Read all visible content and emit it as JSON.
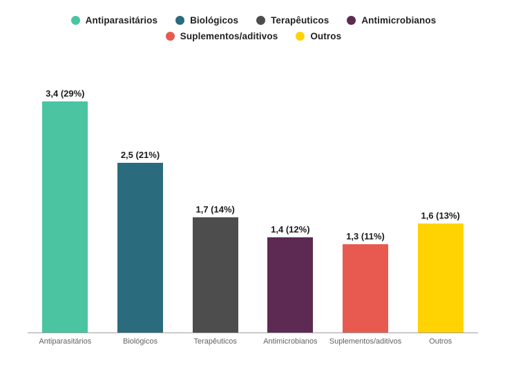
{
  "chart_data": {
    "type": "bar",
    "title": "",
    "xlabel": "",
    "ylabel": "",
    "categories": [
      "Antiparasitários",
      "Biológicos",
      "Terapêuticos",
      "Antimicrobianos",
      "Suplementos/aditivos",
      "Outros"
    ],
    "values": [
      3.4,
      2.5,
      1.7,
      1.4,
      1.3,
      1.6
    ],
    "percents": [
      29,
      21,
      14,
      12,
      11,
      13
    ],
    "value_labels": [
      "3,4 (29%)",
      "2,5 (21%)",
      "1,7 (14%)",
      "1,4 (12%)",
      "1,3 (11%)",
      "1,6 (13%)"
    ],
    "colors": [
      "#4BC4A2",
      "#2A6B7D",
      "#4D4D4D",
      "#5C2A52",
      "#E85A4F",
      "#FFD301"
    ],
    "legend_rows": [
      [
        0,
        1,
        2,
        3
      ],
      [
        4,
        5
      ]
    ],
    "ylim": [
      0,
      4
    ],
    "grid": false,
    "legend_position": "top",
    "background_color": "#ffffff",
    "axis_line_color": "#9e9e9e"
  }
}
